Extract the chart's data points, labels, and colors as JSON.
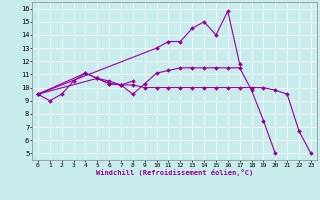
{
  "xlabel": "Windchill (Refroidissement éolien,°C)",
  "bg_color": "#c8ecec",
  "line_color": "#990099",
  "xlim": [
    -0.5,
    23.5
  ],
  "ylim": [
    4.5,
    16.5
  ],
  "yticks": [
    5,
    6,
    7,
    8,
    9,
    10,
    11,
    12,
    13,
    14,
    15,
    16
  ],
  "xticks": [
    0,
    1,
    2,
    3,
    4,
    5,
    6,
    7,
    8,
    9,
    10,
    11,
    12,
    13,
    14,
    15,
    16,
    17,
    18,
    19,
    20,
    21,
    22,
    23
  ],
  "series": [
    {
      "x": [
        0,
        1,
        2,
        3,
        4,
        5,
        6,
        7,
        8,
        9,
        10,
        11,
        12,
        13,
        14,
        15,
        16,
        17,
        18,
        19,
        20
      ],
      "y": [
        9.5,
        9.0,
        9.5,
        10.5,
        11.1,
        10.7,
        10.5,
        10.2,
        9.5,
        10.3,
        11.1,
        11.3,
        11.5,
        11.5,
        11.5,
        11.5,
        11.5,
        11.5,
        9.8,
        7.5,
        5.0
      ]
    },
    {
      "x": [
        0,
        4,
        5,
        6,
        7,
        8,
        9,
        10,
        11,
        12,
        13,
        14,
        15,
        16,
        17,
        18,
        19,
        20,
        21,
        22,
        23
      ],
      "y": [
        9.5,
        11.1,
        10.7,
        10.3,
        10.2,
        10.2,
        10.0,
        10.0,
        10.0,
        10.0,
        10.0,
        10.0,
        10.0,
        10.0,
        10.0,
        10.0,
        10.0,
        9.8,
        9.5,
        6.7,
        5.0
      ]
    },
    {
      "x": [
        0,
        10,
        11,
        12,
        13,
        14,
        15,
        16,
        17
      ],
      "y": [
        9.5,
        13.0,
        13.5,
        13.5,
        14.5,
        15.0,
        14.0,
        15.8,
        11.8
      ]
    },
    {
      "x": [
        0,
        5,
        6,
        7,
        8
      ],
      "y": [
        9.5,
        10.7,
        10.3,
        10.2,
        10.5
      ]
    }
  ]
}
